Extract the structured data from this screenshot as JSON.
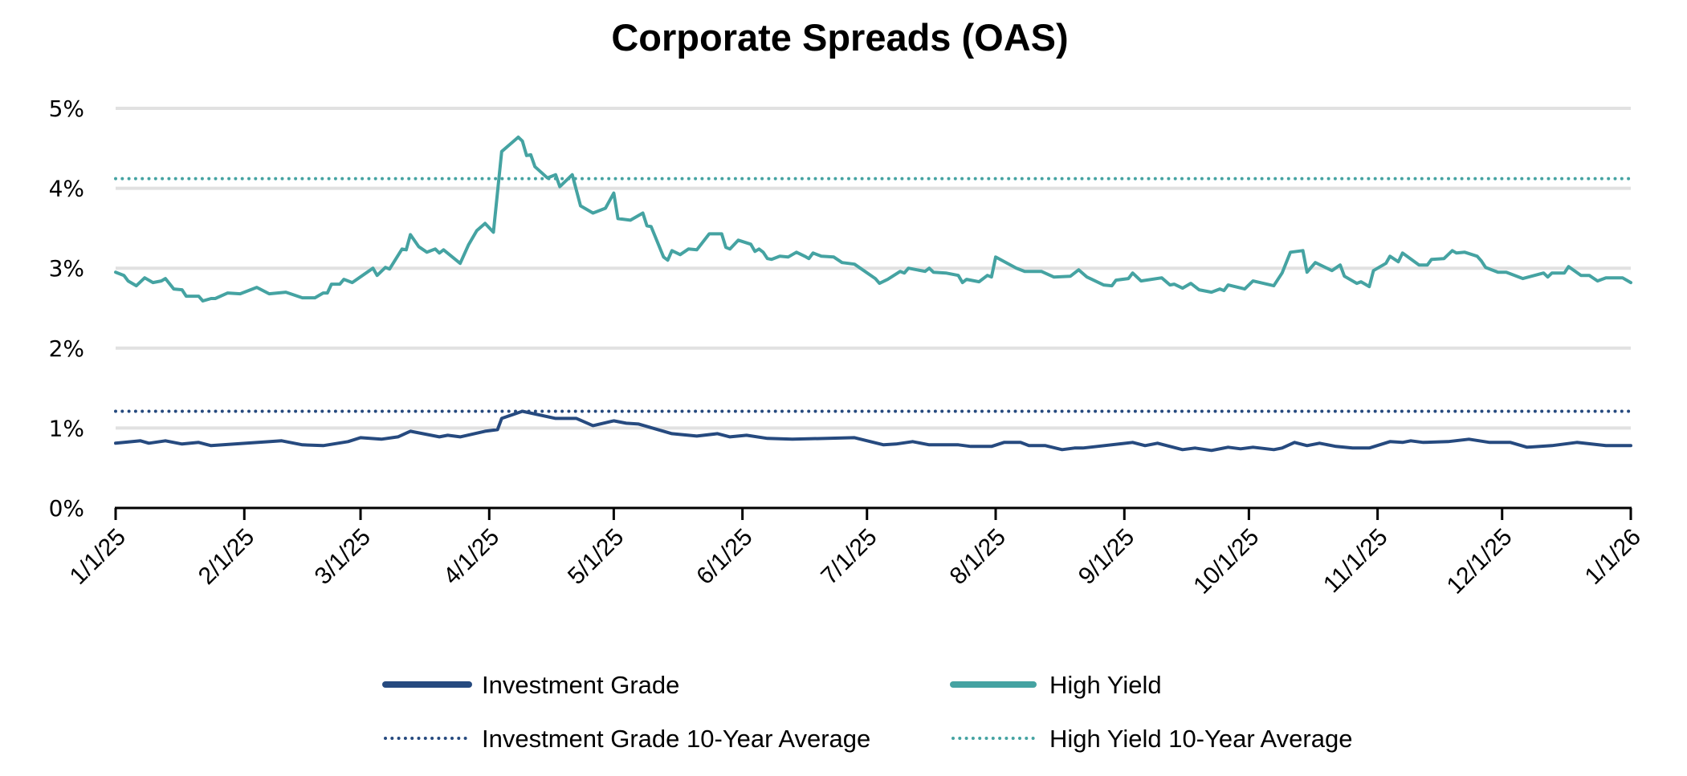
{
  "chart_data": {
    "type": "line",
    "title": "Corporate Spreads (OAS)",
    "xlabel": "",
    "ylabel": "",
    "x_unit": "days since 1/1/25",
    "xlim": [
      0,
      365
    ],
    "ylim": [
      0,
      5
    ],
    "grid": "horizontal",
    "y_ticks": [
      {
        "value": 0,
        "label": "0%"
      },
      {
        "value": 1,
        "label": "1%"
      },
      {
        "value": 2,
        "label": "2%"
      },
      {
        "value": 3,
        "label": "3%"
      },
      {
        "value": 4,
        "label": "4%"
      },
      {
        "value": 5,
        "label": "5%"
      }
    ],
    "x_ticks": [
      {
        "value": 0,
        "label": "1/1/25"
      },
      {
        "value": 31,
        "label": "2/1/25"
      },
      {
        "value": 59,
        "label": "3/1/25"
      },
      {
        "value": 90,
        "label": "4/1/25"
      },
      {
        "value": 120,
        "label": "5/1/25"
      },
      {
        "value": 151,
        "label": "6/1/25"
      },
      {
        "value": 181,
        "label": "7/1/25"
      },
      {
        "value": 212,
        "label": "8/1/25"
      },
      {
        "value": 243,
        "label": "9/1/25"
      },
      {
        "value": 273,
        "label": "10/1/25"
      },
      {
        "value": 304,
        "label": "11/1/25"
      },
      {
        "value": 334,
        "label": "12/1/25"
      },
      {
        "value": 365,
        "label": "1/1/26"
      }
    ],
    "legend_position": "bottom",
    "series": [
      {
        "name": "Investment Grade",
        "style": "solid",
        "color": "#264a7f",
        "points": [
          [
            0,
            0.81
          ],
          [
            6,
            0.84
          ],
          [
            8,
            0.81
          ],
          [
            12,
            0.84
          ],
          [
            16,
            0.8
          ],
          [
            20,
            0.82
          ],
          [
            23,
            0.78
          ],
          [
            40,
            0.84
          ],
          [
            45,
            0.79
          ],
          [
            50,
            0.78
          ],
          [
            56,
            0.83
          ],
          [
            59,
            0.88
          ],
          [
            64,
            0.86
          ],
          [
            68,
            0.89
          ],
          [
            71,
            0.96
          ],
          [
            78,
            0.89
          ],
          [
            80,
            0.91
          ],
          [
            83,
            0.89
          ],
          [
            89,
            0.96
          ],
          [
            92,
            0.98
          ],
          [
            93,
            1.12
          ],
          [
            98,
            1.21
          ],
          [
            106,
            1.12
          ],
          [
            111,
            1.12
          ],
          [
            115,
            1.03
          ],
          [
            120,
            1.09
          ],
          [
            123,
            1.06
          ],
          [
            126,
            1.05
          ],
          [
            134,
            0.93
          ],
          [
            140,
            0.9
          ],
          [
            145,
            0.93
          ],
          [
            148,
            0.89
          ],
          [
            152,
            0.91
          ],
          [
            157,
            0.87
          ],
          [
            163,
            0.86
          ],
          [
            178,
            0.88
          ],
          [
            185,
            0.79
          ],
          [
            188,
            0.8
          ],
          [
            192,
            0.83
          ],
          [
            196,
            0.79
          ],
          [
            203,
            0.79
          ],
          [
            206,
            0.77
          ],
          [
            211,
            0.77
          ],
          [
            214,
            0.82
          ],
          [
            218,
            0.82
          ],
          [
            220,
            0.78
          ],
          [
            224,
            0.78
          ],
          [
            228,
            0.73
          ],
          [
            231,
            0.75
          ],
          [
            233,
            0.75
          ],
          [
            245,
            0.82
          ],
          [
            248,
            0.78
          ],
          [
            251,
            0.81
          ],
          [
            257,
            0.73
          ],
          [
            260,
            0.75
          ],
          [
            264,
            0.72
          ],
          [
            268,
            0.76
          ],
          [
            271,
            0.74
          ],
          [
            274,
            0.76
          ],
          [
            279,
            0.73
          ],
          [
            281,
            0.75
          ],
          [
            284,
            0.82
          ],
          [
            287,
            0.78
          ],
          [
            290,
            0.81
          ],
          [
            294,
            0.77
          ],
          [
            298,
            0.75
          ],
          [
            302,
            0.75
          ],
          [
            307,
            0.83
          ],
          [
            310,
            0.82
          ],
          [
            312,
            0.84
          ],
          [
            315,
            0.82
          ],
          [
            321,
            0.83
          ],
          [
            326,
            0.86
          ],
          [
            331,
            0.82
          ],
          [
            336,
            0.82
          ],
          [
            340,
            0.76
          ],
          [
            346,
            0.78
          ],
          [
            352,
            0.82
          ],
          [
            359,
            0.78
          ],
          [
            365,
            0.78
          ]
        ]
      },
      {
        "name": "High Yield",
        "style": "solid",
        "color": "#45a3a2",
        "points": [
          [
            0,
            2.95
          ],
          [
            2,
            2.91
          ],
          [
            3,
            2.84
          ],
          [
            5,
            2.78
          ],
          [
            7,
            2.88
          ],
          [
            9,
            2.82
          ],
          [
            11,
            2.84
          ],
          [
            12,
            2.87
          ],
          [
            14,
            2.74
          ],
          [
            16,
            2.73
          ],
          [
            17,
            2.65
          ],
          [
            20,
            2.65
          ],
          [
            21,
            2.59
          ],
          [
            23,
            2.62
          ],
          [
            24,
            2.62
          ],
          [
            27,
            2.69
          ],
          [
            30,
            2.68
          ],
          [
            34,
            2.76
          ],
          [
            37,
            2.68
          ],
          [
            41,
            2.7
          ],
          [
            45,
            2.63
          ],
          [
            48,
            2.63
          ],
          [
            50,
            2.69
          ],
          [
            51,
            2.69
          ],
          [
            52,
            2.8
          ],
          [
            54,
            2.8
          ],
          [
            55,
            2.86
          ],
          [
            57,
            2.82
          ],
          [
            62,
            3.0
          ],
          [
            63,
            2.91
          ],
          [
            65,
            3.01
          ],
          [
            66,
            2.99
          ],
          [
            69,
            3.24
          ],
          [
            70,
            3.23
          ],
          [
            71,
            3.42
          ],
          [
            73,
            3.27
          ],
          [
            75,
            3.2
          ],
          [
            77,
            3.24
          ],
          [
            78,
            3.19
          ],
          [
            79,
            3.23
          ],
          [
            83,
            3.06
          ],
          [
            85,
            3.29
          ],
          [
            87,
            3.47
          ],
          [
            89,
            3.56
          ],
          [
            91,
            3.45
          ],
          [
            93,
            4.46
          ],
          [
            97,
            4.64
          ],
          [
            98,
            4.59
          ],
          [
            99,
            4.41
          ],
          [
            100,
            4.42
          ],
          [
            101,
            4.27
          ],
          [
            104,
            4.13
          ],
          [
            106,
            4.17
          ],
          [
            107,
            4.02
          ],
          [
            110,
            4.17
          ],
          [
            112,
            3.78
          ],
          [
            115,
            3.69
          ],
          [
            118,
            3.75
          ],
          [
            120,
            3.94
          ],
          [
            121,
            3.62
          ],
          [
            124,
            3.6
          ],
          [
            127,
            3.69
          ],
          [
            128,
            3.53
          ],
          [
            129,
            3.52
          ],
          [
            132,
            3.14
          ],
          [
            133,
            3.1
          ],
          [
            134,
            3.22
          ],
          [
            136,
            3.17
          ],
          [
            138,
            3.24
          ],
          [
            140,
            3.23
          ],
          [
            143,
            3.43
          ],
          [
            146,
            3.43
          ],
          [
            147,
            3.26
          ],
          [
            148,
            3.24
          ],
          [
            150,
            3.35
          ],
          [
            153,
            3.3
          ],
          [
            154,
            3.21
          ],
          [
            155,
            3.24
          ],
          [
            156,
            3.2
          ],
          [
            157,
            3.12
          ],
          [
            158,
            3.11
          ],
          [
            160,
            3.15
          ],
          [
            162,
            3.14
          ],
          [
            164,
            3.2
          ],
          [
            166,
            3.15
          ],
          [
            167,
            3.12
          ],
          [
            168,
            3.19
          ],
          [
            170,
            3.15
          ],
          [
            173,
            3.14
          ],
          [
            175,
            3.07
          ],
          [
            178,
            3.05
          ],
          [
            183,
            2.87
          ],
          [
            184,
            2.81
          ],
          [
            186,
            2.86
          ],
          [
            189,
            2.96
          ],
          [
            190,
            2.94
          ],
          [
            191,
            3.0
          ],
          [
            195,
            2.96
          ],
          [
            196,
            3.0
          ],
          [
            197,
            2.95
          ],
          [
            200,
            2.94
          ],
          [
            203,
            2.91
          ],
          [
            204,
            2.82
          ],
          [
            205,
            2.86
          ],
          [
            208,
            2.83
          ],
          [
            210,
            2.91
          ],
          [
            211,
            2.89
          ],
          [
            212,
            3.14
          ],
          [
            217,
            3.0
          ],
          [
            219,
            2.96
          ],
          [
            223,
            2.96
          ],
          [
            226,
            2.89
          ],
          [
            230,
            2.9
          ],
          [
            232,
            2.98
          ],
          [
            234,
            2.89
          ],
          [
            238,
            2.79
          ],
          [
            240,
            2.78
          ],
          [
            241,
            2.85
          ],
          [
            244,
            2.87
          ],
          [
            245,
            2.94
          ],
          [
            247,
            2.84
          ],
          [
            252,
            2.88
          ],
          [
            254,
            2.79
          ],
          [
            255,
            2.8
          ],
          [
            257,
            2.75
          ],
          [
            259,
            2.81
          ],
          [
            261,
            2.73
          ],
          [
            264,
            2.7
          ],
          [
            266,
            2.74
          ],
          [
            267,
            2.72
          ],
          [
            268,
            2.79
          ],
          [
            272,
            2.74
          ],
          [
            274,
            2.84
          ],
          [
            279,
            2.78
          ],
          [
            281,
            2.94
          ],
          [
            283,
            3.2
          ],
          [
            286,
            3.22
          ],
          [
            287,
            2.95
          ],
          [
            289,
            3.07
          ],
          [
            293,
            2.97
          ],
          [
            295,
            3.04
          ],
          [
            296,
            2.9
          ],
          [
            299,
            2.81
          ],
          [
            300,
            2.83
          ],
          [
            302,
            2.77
          ],
          [
            303,
            2.97
          ],
          [
            306,
            3.06
          ],
          [
            307,
            3.15
          ],
          [
            309,
            3.08
          ],
          [
            310,
            3.19
          ],
          [
            314,
            3.04
          ],
          [
            316,
            3.04
          ],
          [
            317,
            3.11
          ],
          [
            320,
            3.12
          ],
          [
            322,
            3.22
          ],
          [
            323,
            3.19
          ],
          [
            325,
            3.2
          ],
          [
            328,
            3.15
          ],
          [
            329,
            3.09
          ],
          [
            330,
            3.01
          ],
          [
            333,
            2.95
          ],
          [
            335,
            2.95
          ],
          [
            339,
            2.87
          ],
          [
            344,
            2.94
          ],
          [
            345,
            2.89
          ],
          [
            346,
            2.94
          ],
          [
            349,
            2.94
          ],
          [
            350,
            3.02
          ],
          [
            353,
            2.91
          ],
          [
            355,
            2.91
          ],
          [
            357,
            2.84
          ],
          [
            359,
            2.88
          ],
          [
            363,
            2.88
          ],
          [
            365,
            2.82
          ]
        ]
      },
      {
        "name": "Investment Grade 10-Year Average",
        "style": "dotted",
        "color": "#264a7f",
        "value": 1.21
      },
      {
        "name": "High Yield 10-Year Average",
        "style": "dotted",
        "color": "#45a3a2",
        "value": 4.12
      }
    ],
    "legend": [
      {
        "label": "Investment Grade",
        "style": "solid",
        "color": "#264a7f"
      },
      {
        "label": "High Yield",
        "style": "solid",
        "color": "#45a3a2"
      },
      {
        "label": "Investment Grade 10-Year Average",
        "style": "dotted",
        "color": "#264a7f"
      },
      {
        "label": "High Yield 10-Year Average",
        "style": "dotted",
        "color": "#45a3a2"
      }
    ],
    "colors": {
      "gridline": "#e1e1e1",
      "axis": "#000000"
    }
  }
}
